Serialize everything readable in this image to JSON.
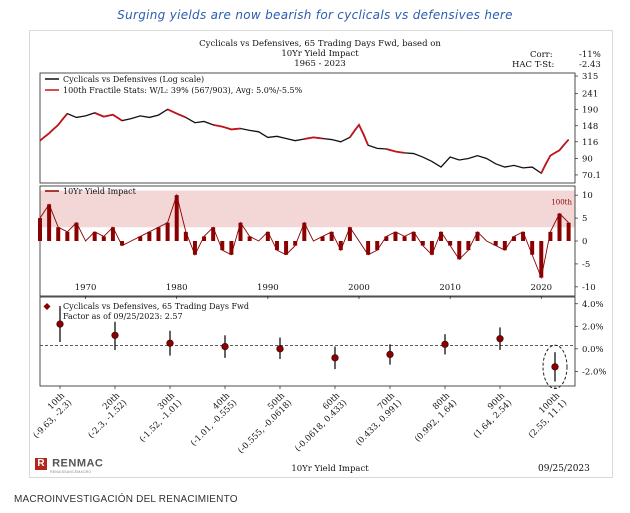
{
  "headline": "Surging yields are now bearish for cyclicals vs defensives here",
  "chart_title": {
    "line1": "Cyclicals vs Defensives, 65 Trading Days Fwd, based on",
    "line2": "10Yr Yield Impact",
    "line3": "1965 - 2023"
  },
  "stats": {
    "corr_label": "Corr:",
    "corr_value": "-11%",
    "hac_label": "HAC T-St:",
    "hac_value": "-2.43"
  },
  "colors": {
    "series_black": "#111111",
    "series_red": "#c0141b",
    "impact": "#8b0000",
    "band": "#f3d6d6"
  },
  "chart_data": [
    {
      "type": "line",
      "legend": [
        "Cyclicals vs Defensives (Log scale)",
        "100th Fractile Stats:  W/L: 39% (567/903), Avg: 5.0%/-5.5%"
      ],
      "yscale": "log",
      "yticks": [
        70.1,
        90.0,
        116,
        148,
        190,
        241,
        315
      ],
      "ylim": [
        62,
        330
      ],
      "x": [
        1965,
        1966,
        1967,
        1968,
        1969,
        1970,
        1971,
        1972,
        1973,
        1974,
        1975,
        1976,
        1977,
        1978,
        1979,
        1980,
        1981,
        1982,
        1983,
        1984,
        1985,
        1986,
        1987,
        1988,
        1989,
        1990,
        1991,
        1992,
        1993,
        1994,
        1995,
        1996,
        1997,
        1998,
        1999,
        2000,
        2001,
        2002,
        2003,
        2004,
        2005,
        2006,
        2007,
        2008,
        2009,
        2010,
        2011,
        2012,
        2013,
        2014,
        2015,
        2016,
        2017,
        2018,
        2019,
        2020,
        2021,
        2022,
        2023
      ],
      "y": [
        118,
        132,
        150,
        178,
        168,
        172,
        180,
        170,
        175,
        160,
        165,
        172,
        168,
        174,
        190,
        178,
        168,
        155,
        158,
        150,
        146,
        140,
        142,
        138,
        135,
        124,
        126,
        122,
        118,
        121,
        124,
        122,
        120,
        116,
        124,
        150,
        110,
        105,
        104,
        100,
        98,
        97,
        92,
        86,
        79,
        92,
        88,
        90,
        94,
        90,
        83,
        79,
        81,
        78,
        79,
        72,
        94,
        102,
        120
      ],
      "red_segments_x": [
        [
          1965,
          1968
        ],
        [
          1971,
          1974
        ],
        [
          1979,
          1981
        ],
        [
          1984,
          1987
        ],
        [
          1994,
          1996
        ],
        [
          1999,
          2001
        ],
        [
          2003,
          2005
        ],
        [
          2020,
          2023
        ]
      ]
    },
    {
      "type": "area",
      "legend": "10Yr Yield Impact",
      "yticks": [
        10,
        5,
        0,
        -5,
        -10
      ],
      "ylim": [
        -12,
        12
      ],
      "band": [
        3.0,
        11.0
      ],
      "band_label": "100th",
      "xticks": [
        1970,
        1980,
        1990,
        2000,
        2010,
        2020
      ],
      "x": [
        1965,
        1966,
        1967,
        1968,
        1969,
        1970,
        1971,
        1972,
        1973,
        1974,
        1975,
        1976,
        1977,
        1978,
        1979,
        1980,
        1981,
        1982,
        1983,
        1984,
        1985,
        1986,
        1987,
        1988,
        1989,
        1990,
        1991,
        1992,
        1993,
        1994,
        1995,
        1996,
        1997,
        1998,
        1999,
        2000,
        2001,
        2002,
        2003,
        2004,
        2005,
        2006,
        2007,
        2008,
        2009,
        2010,
        2011,
        2012,
        2013,
        2014,
        2015,
        2016,
        2017,
        2018,
        2019,
        2020,
        2021,
        2022,
        2023
      ],
      "y": [
        5,
        8,
        3,
        2,
        4,
        0,
        2,
        1,
        3,
        -1,
        0,
        1,
        2,
        3,
        4,
        10,
        2,
        -3,
        1,
        3,
        -2,
        -3,
        4,
        1,
        0,
        2,
        -2,
        -3,
        -1,
        4,
        0,
        1,
        2,
        -2,
        3,
        0,
        -3,
        -2,
        1,
        2,
        1,
        2,
        -1,
        -3,
        2,
        -1,
        -4,
        -2,
        2,
        0,
        -1,
        -2,
        1,
        2,
        -3,
        -8,
        2,
        6,
        4
      ]
    },
    {
      "type": "scatter",
      "legend": [
        "Cyclicals vs Defensives, 65 Trading Days Fwd",
        "Factor as of 09/25/2023: 2.57"
      ],
      "xlabel": "10Yr Yield Impact",
      "yticks": [
        "4.0%",
        "2.0%",
        "0.0%",
        "-2.0%"
      ],
      "ytick_values": [
        4,
        2,
        0,
        -2
      ],
      "ylim": [
        -3.3,
        4.6
      ],
      "reference_line": 0.3,
      "categories": [
        "10th\n(-9.63, -2.3)",
        "20th\n(-2.3, -1.52)",
        "30th\n(-1.52, -1.01)",
        "40th\n(-1.01, -0.555)",
        "50th\n(-0.555, -0.0618)",
        "60th\n(-0.0618, 0.433)",
        "70th\n(0.433, 0.991)",
        "80th\n(0.992, 1.64)",
        "90th\n(1.64, 2.54)",
        "100th\n(2.55, 11.1)"
      ],
      "values": [
        2.2,
        1.2,
        0.5,
        0.2,
        0.0,
        -0.8,
        -0.5,
        0.4,
        0.9,
        -1.6
      ],
      "low": [
        0.6,
        -0.1,
        -0.6,
        -0.8,
        -0.9,
        -1.8,
        -1.4,
        -0.5,
        -0.1,
        -2.9
      ],
      "high": [
        3.8,
        2.4,
        1.6,
        1.2,
        1.0,
        0.2,
        0.4,
        1.3,
        1.9,
        -0.3
      ],
      "highlight": "100th"
    }
  ],
  "logo": {
    "mark": "R",
    "name": "RENMAC",
    "tagline": "RENAISSANCEMACRO"
  },
  "date": "09/25/2023",
  "footer": "MACROINVESTIGACIÓN DEL RENACIMIENTO"
}
